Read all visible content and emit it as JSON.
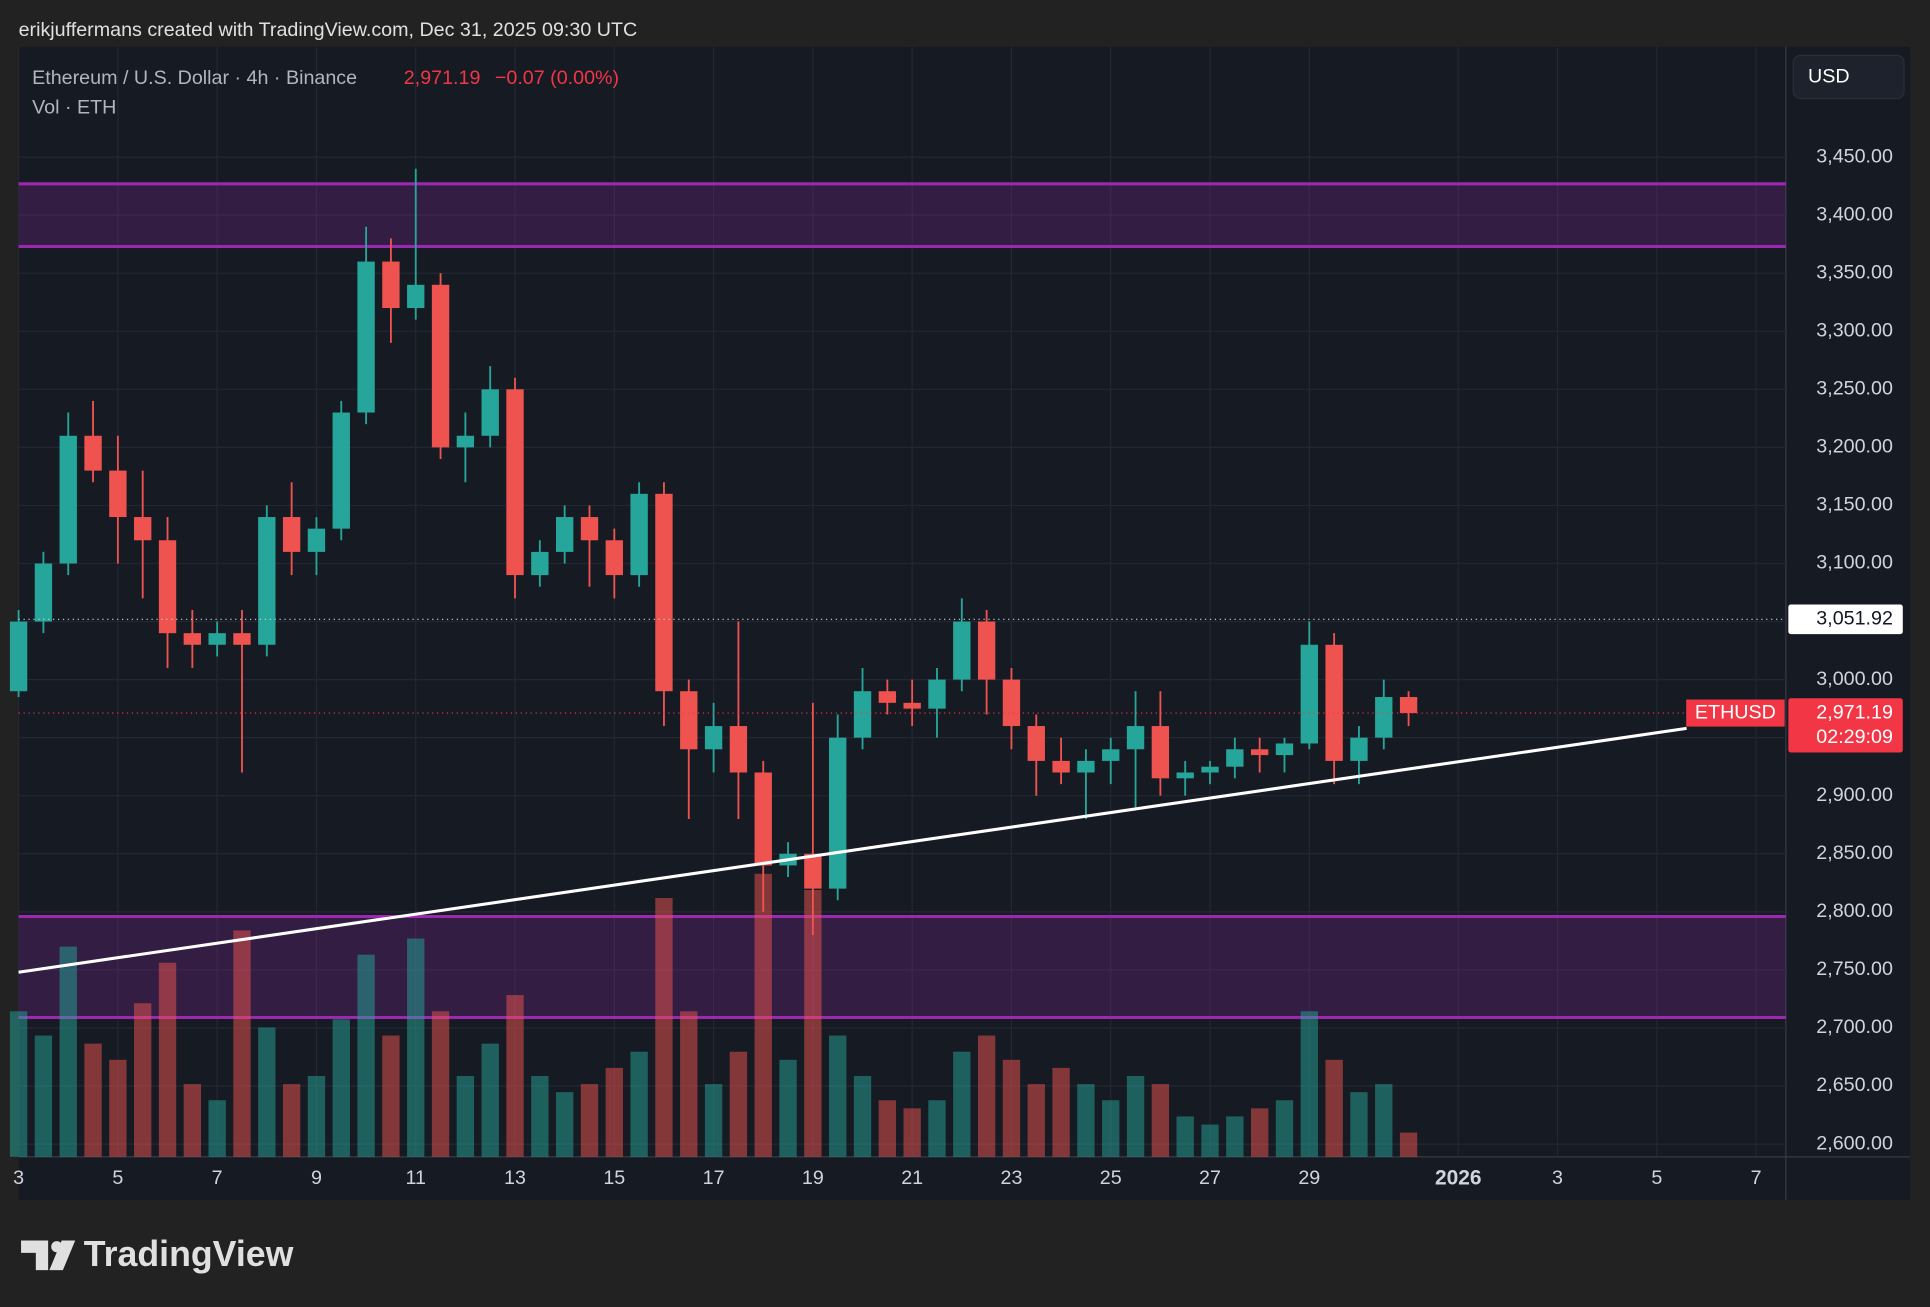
{
  "header": {
    "credit": "erikjuffermans created with TradingView.com, Dec 31, 2025 09:30 UTC",
    "symbol": "Ethereum / U.S. Dollar · 4h · Binance",
    "last_price": "2,971.19",
    "change": "−0.07 (0.00%)",
    "volume_label": "Vol · ETH",
    "currency": "USD",
    "brand": "TradingView"
  },
  "chart_data": {
    "type": "candlestick",
    "up_color": "#26a69a",
    "down_color": "#ef5350",
    "grid": true,
    "x": [
      3,
      3.5,
      4,
      4.5,
      5,
      5.5,
      6,
      6.5,
      7,
      7.5,
      8,
      8.5,
      9,
      9.5,
      10,
      10.5,
      11,
      11.5,
      12,
      12.5,
      13,
      13.5,
      14,
      14.5,
      15,
      15.5,
      16,
      16.5,
      17,
      17.5,
      18,
      18.5,
      19,
      19.5,
      20,
      20.5,
      21,
      21.5,
      22,
      22.5,
      23,
      23.5,
      24,
      24.5,
      25,
      25.5,
      26,
      26.5,
      27,
      27.5,
      28,
      28.5,
      29,
      29.5,
      30,
      30.5,
      31
    ],
    "open": [
      2990,
      3050,
      3100,
      3210,
      3180,
      3140,
      3120,
      3040,
      3030,
      3040,
      3030,
      3140,
      3110,
      3130,
      3230,
      3360,
      3320,
      3340,
      3200,
      3210,
      3250,
      3090,
      3110,
      3140,
      3120,
      3090,
      3160,
      2990,
      2940,
      2960,
      2920,
      2840,
      2850,
      2820,
      2950,
      2990,
      2980,
      2975,
      3000,
      3050,
      3000,
      2960,
      2930,
      2920,
      2930,
      2940,
      2960,
      2915,
      2920,
      2925,
      2940,
      2935,
      2945,
      3030,
      2930,
      2950,
      2985
    ],
    "high": [
      3060,
      3110,
      3230,
      3240,
      3210,
      3180,
      3140,
      3060,
      3050,
      3060,
      3150,
      3170,
      3140,
      3240,
      3390,
      3380,
      3440,
      3350,
      3230,
      3270,
      3260,
      3120,
      3150,
      3150,
      3130,
      3170,
      3170,
      3000,
      2980,
      3050,
      2930,
      2860,
      2980,
      2970,
      3010,
      3000,
      3000,
      3010,
      3070,
      3060,
      3010,
      2970,
      2950,
      2940,
      2950,
      2990,
      2990,
      2930,
      2930,
      2950,
      2950,
      2950,
      3050,
      3040,
      2960,
      3000,
      2990
    ],
    "low": [
      2985,
      3040,
      3090,
      3170,
      3100,
      3070,
      3010,
      3010,
      3020,
      2920,
      3020,
      3090,
      3090,
      3120,
      3220,
      3290,
      3310,
      3190,
      3170,
      3200,
      3070,
      3080,
      3100,
      3080,
      3070,
      3080,
      2960,
      2880,
      2920,
      2880,
      2800,
      2830,
      2780,
      2810,
      2940,
      2970,
      2960,
      2950,
      2990,
      2970,
      2940,
      2900,
      2910,
      2880,
      2910,
      2890,
      2900,
      2900,
      2910,
      2915,
      2920,
      2920,
      2940,
      2910,
      2910,
      2940,
      2960
    ],
    "close": [
      3050,
      3100,
      3210,
      3180,
      3140,
      3120,
      3040,
      3030,
      3040,
      3030,
      3140,
      3110,
      3130,
      3230,
      3360,
      3320,
      3340,
      3200,
      3210,
      3250,
      3090,
      3110,
      3140,
      3120,
      3090,
      3160,
      2990,
      2940,
      2960,
      2920,
      2840,
      2850,
      2820,
      2950,
      2990,
      2980,
      2975,
      3000,
      3050,
      3000,
      2960,
      2930,
      2920,
      2930,
      2940,
      2960,
      2915,
      2920,
      2925,
      2940,
      2935,
      2945,
      3030,
      2930,
      2950,
      2985,
      2971.19
    ],
    "volume": [
      1800,
      1500,
      2600,
      1400,
      1200,
      1900,
      2400,
      900,
      700,
      2800,
      1600,
      900,
      1000,
      1700,
      2500,
      1500,
      2700,
      1800,
      1000,
      1400,
      2000,
      1000,
      800,
      900,
      1100,
      1300,
      3200,
      1800,
      900,
      1300,
      3500,
      1200,
      3300,
      1500,
      1000,
      700,
      600,
      700,
      1300,
      1500,
      1200,
      900,
      1100,
      900,
      700,
      1000,
      900,
      500,
      400,
      500,
      600,
      700,
      1800,
      1200,
      800,
      900,
      300
    ],
    "xlim": [
      3,
      38.6
    ],
    "ylim": [
      2589,
      3545
    ],
    "xticks": [
      3,
      5,
      7,
      9,
      11,
      13,
      15,
      17,
      19,
      21,
      23,
      25,
      27,
      29,
      {
        "value": 32,
        "label": "2026"
      },
      {
        "value": 34,
        "label": "3"
      },
      {
        "value": 36,
        "label": "5"
      },
      {
        "value": 38,
        "label": "7"
      }
    ],
    "yticks": [
      {
        "value": 2600,
        "label": "2,600.00"
      },
      {
        "value": 2650,
        "label": "2,650.00"
      },
      {
        "value": 2700,
        "label": "2,700.00"
      },
      {
        "value": 2750,
        "label": "2,750.00"
      },
      {
        "value": 2800,
        "label": "2,800.00"
      },
      {
        "value": 2850,
        "label": "2,850.00"
      },
      {
        "value": 2900,
        "label": "2,900.00"
      },
      {
        "value": 2950,
        "label": "2,950.00"
      },
      {
        "value": 3000,
        "label": "3,000.00"
      },
      {
        "value": 3050,
        "label": "3,050.00"
      },
      {
        "value": 3100,
        "label": "3,100.00"
      },
      {
        "value": 3150,
        "label": "3,150.00"
      },
      {
        "value": 3200,
        "label": "3,200.00"
      },
      {
        "value": 3250,
        "label": "3,250.00"
      },
      {
        "value": 3300,
        "label": "3,300.00"
      },
      {
        "value": 3350,
        "label": "3,350.00"
      },
      {
        "value": 3400,
        "label": "3,400.00"
      },
      {
        "value": 3450,
        "label": "3,450.00"
      }
    ],
    "zones": [
      {
        "from": 3373,
        "to": 3427,
        "color": "#9c27b0"
      },
      {
        "from": 2709,
        "to": 2796,
        "color": "#9c27b0"
      }
    ],
    "trendline": {
      "x": [
        3,
        36.6
      ],
      "y": [
        2748,
        2958
      ],
      "color": "#ffffff"
    },
    "high_line": {
      "value": 3051.92,
      "label": "3,051.92"
    },
    "price_line": {
      "value": 2971.19,
      "label": "2,971.19",
      "symbol": "ETHUSD",
      "countdown": "02:29:09",
      "color": "#f23645"
    }
  }
}
